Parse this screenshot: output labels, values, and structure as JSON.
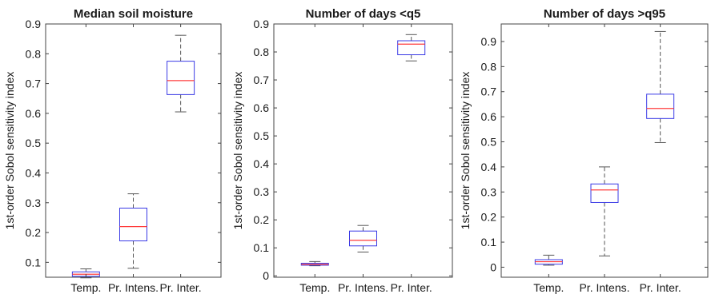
{
  "figure": {
    "colors": {
      "box": "#3a3ae6",
      "median": "#ff3b3b",
      "whisker": "#555555",
      "axis": "#444444",
      "text": "#1a1a1a"
    }
  },
  "chart_data": [
    {
      "type": "box",
      "title": "Median soil moisture",
      "xlabel": "",
      "ylabel": "1st-order Sobol sensitivity index",
      "ylim": [
        0.05,
        0.9
      ],
      "yticks": [
        "0.1",
        "0.2",
        "0.3",
        "0.4",
        "0.5",
        "0.6",
        "0.7",
        "0.8",
        "0.9"
      ],
      "categories": [
        "Temp.",
        "Pr. Intens.",
        "Pr. Inter."
      ],
      "boxes": [
        {
          "min": 0.048,
          "q1": 0.053,
          "median": 0.06,
          "q3": 0.068,
          "max": 0.078
        },
        {
          "min": 0.08,
          "q1": 0.172,
          "median": 0.22,
          "q3": 0.282,
          "max": 0.33
        },
        {
          "min": 0.605,
          "q1": 0.663,
          "median": 0.71,
          "q3": 0.775,
          "max": 0.862
        }
      ]
    },
    {
      "type": "box",
      "title": "Number of days <q5",
      "xlabel": "",
      "ylabel": "1st-order Sobol sensitivity index",
      "ylim": [
        -0.005,
        0.9
      ],
      "yticks": [
        "0",
        "0.1",
        "0.2",
        "0.3",
        "0.4",
        "0.5",
        "0.6",
        "0.7",
        "0.8",
        "0.9"
      ],
      "categories": [
        "Temp.",
        "Pr. Intens.",
        "Pr. Inter."
      ],
      "boxes": [
        {
          "min": 0.036,
          "q1": 0.038,
          "median": 0.041,
          "q3": 0.045,
          "max": 0.051
        },
        {
          "min": 0.085,
          "q1": 0.107,
          "median": 0.127,
          "q3": 0.16,
          "max": 0.18
        },
        {
          "min": 0.768,
          "q1": 0.79,
          "median": 0.828,
          "q3": 0.84,
          "max": 0.862
        }
      ]
    },
    {
      "type": "box",
      "title": "Number of days >q95",
      "xlabel": "",
      "ylabel": "1st-order Sobol sensitivity index",
      "ylim": [
        -0.04,
        0.97
      ],
      "yticks": [
        "0",
        "0.1",
        "0.2",
        "0.3",
        "0.4",
        "0.5",
        "0.6",
        "0.7",
        "0.8",
        "0.9"
      ],
      "categories": [
        "Temp.",
        "Pr. Intens.",
        "Pr. Inter."
      ],
      "boxes": [
        {
          "min": 0.008,
          "q1": 0.012,
          "median": 0.022,
          "q3": 0.03,
          "max": 0.048
        },
        {
          "min": 0.045,
          "q1": 0.258,
          "median": 0.308,
          "q3": 0.332,
          "max": 0.4
        },
        {
          "min": 0.497,
          "q1": 0.593,
          "median": 0.633,
          "q3": 0.69,
          "max": 0.94
        }
      ]
    }
  ]
}
